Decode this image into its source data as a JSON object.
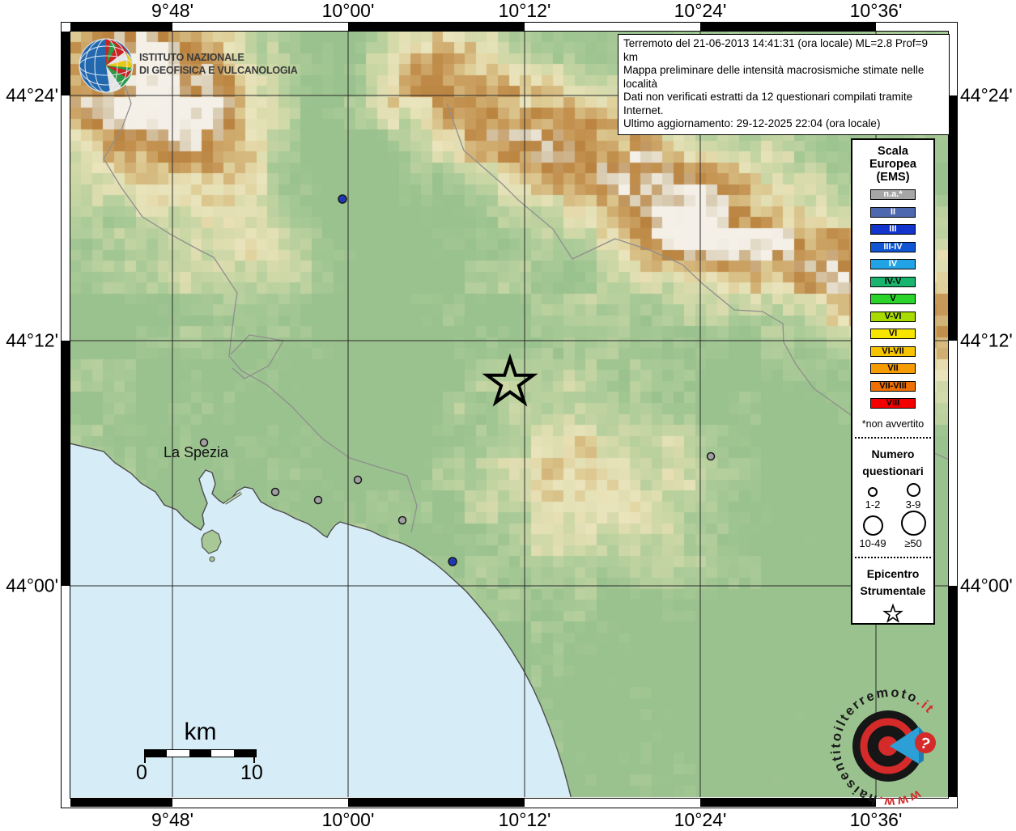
{
  "header": {
    "info_lines": [
      "Terremoto del 21-06-2013 14:41:31 (ora locale) ML=2.8 Prof=9 km",
      "Mappa preliminare delle intensità macrosismiche stimate nelle località",
      "Dati non verificati estratti da 12 questionari compilati tramite Internet.",
      "Ultimo aggiornamento: 29-12-2025 22:04 (ora locale)"
    ],
    "ingv_line1": "ISTITUTO NAZIONALE",
    "ingv_line2": "DI GEOFISICA E VULCANOLOGIA"
  },
  "axes": {
    "top": [
      "9°48'",
      "10°00'",
      "10°12'",
      "10°24'",
      "10°36'"
    ],
    "bottom": [
      "9°48'",
      "10°00'",
      "10°12'",
      "10°24'",
      "10°36'"
    ],
    "left": [
      "44°24'",
      "44°12'",
      "44°00'"
    ],
    "right": [
      "44°24'",
      "44°12'",
      "44°00'"
    ]
  },
  "legend": {
    "title_lines": [
      "Scala",
      "Europea",
      "(EMS)"
    ],
    "classes": [
      {
        "label": "n.a.*",
        "color": "#a6a6a6",
        "text": "#ffffff"
      },
      {
        "label": "II",
        "color": "#4e68b0",
        "text": "#ffffff"
      },
      {
        "label": "III",
        "color": "#1233cc",
        "text": "#ffffff"
      },
      {
        "label": "III-IV",
        "color": "#0f55d4",
        "text": "#ffffff"
      },
      {
        "label": "IV",
        "color": "#22a3e6",
        "text": "#ffffff"
      },
      {
        "label": "IV-V",
        "color": "#19b56e",
        "text": "#000000"
      },
      {
        "label": "V",
        "color": "#2bd42b",
        "text": "#000000"
      },
      {
        "label": "V-VI",
        "color": "#a8dc00",
        "text": "#000000"
      },
      {
        "label": "VI",
        "color": "#f7e500",
        "text": "#000000"
      },
      {
        "label": "VI-VII",
        "color": "#f7c400",
        "text": "#000000"
      },
      {
        "label": "VII",
        "color": "#f79c00",
        "text": "#000000"
      },
      {
        "label": "VII-VIII",
        "color": "#ef7000",
        "text": "#000000"
      },
      {
        "label": "VIII",
        "color": "#f40000",
        "text": "#000000"
      }
    ],
    "footnote": "*non avvertito",
    "questionari_title_lines": [
      "Numero",
      "questionari"
    ],
    "questionari_sizes": [
      {
        "label": "1-2",
        "d": 8
      },
      {
        "label": "3-9",
        "d": 13
      },
      {
        "label": "10-49",
        "d": 21
      },
      {
        "label": "≥50",
        "d": 27
      }
    ],
    "epicentro_title_lines": [
      "Epicentro",
      "Strumentale"
    ]
  },
  "map": {
    "city": "La Spezia",
    "scalebar": {
      "unit": "km",
      "from": "0",
      "to": "10"
    },
    "markers_not_felt": [
      [
        252,
        547
      ],
      [
        340,
        608
      ],
      [
        393,
        618
      ],
      [
        442,
        593
      ],
      [
        497,
        643
      ],
      [
        878,
        564
      ]
    ],
    "markers_felt": [
      [
        423,
        246
      ],
      [
        559,
        694
      ]
    ],
    "epicenter": [
      630,
      473
    ]
  },
  "watermark": {
    "www": "www.",
    "host": "haisentitoilterremoto",
    "tld": ".it",
    "badge": "?"
  }
}
